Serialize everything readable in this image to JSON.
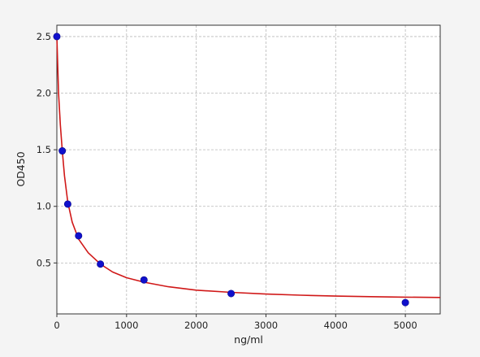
{
  "chart_data": {
    "type": "scatter",
    "xlabel": "ng/ml",
    "ylabel": "OD450",
    "xlim": [
      0,
      5500
    ],
    "ylim": [
      0.05,
      2.6
    ],
    "xticks": [
      0,
      1000,
      2000,
      3000,
      4000,
      5000
    ],
    "yticks": [
      0.5,
      1.0,
      1.5,
      2.0,
      2.5
    ],
    "xtick_labels": [
      "0",
      "1000",
      "2000",
      "3000",
      "4000",
      "5000"
    ],
    "ytick_labels": [
      "0.5",
      "1.0",
      "1.5",
      "2.0",
      "2.5"
    ],
    "grid": true,
    "series": [
      {
        "kind": "points",
        "color": "#1010cc",
        "x": [
          0,
          78,
          156,
          312,
          625,
          1250,
          2500,
          5000
        ],
        "y": [
          2.5,
          1.49,
          1.02,
          0.74,
          0.49,
          0.35,
          0.23,
          0.15
        ]
      },
      {
        "kind": "fitted-curve",
        "color": "#d01818",
        "x": [
          0,
          25,
          50,
          78,
          110,
          156,
          220,
          312,
          450,
          625,
          800,
          1000,
          1250,
          1600,
          2000,
          2500,
          3000,
          3500,
          4000,
          4500,
          5000,
          5500
        ],
        "y": [
          2.5,
          2.0,
          1.72,
          1.49,
          1.27,
          1.04,
          0.86,
          0.71,
          0.59,
          0.49,
          0.42,
          0.37,
          0.33,
          0.29,
          0.26,
          0.24,
          0.225,
          0.215,
          0.207,
          0.202,
          0.198,
          0.195
        ]
      }
    ]
  }
}
